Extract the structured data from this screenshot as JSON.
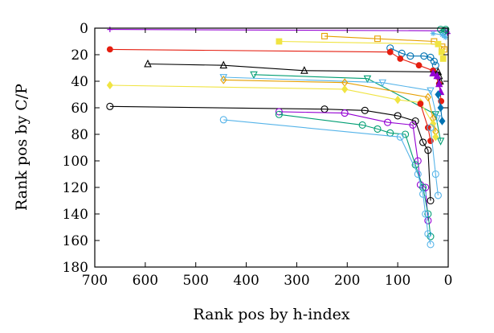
{
  "chart_data": {
    "type": "line",
    "title": "",
    "xlabel": "Rank pos by h-index",
    "ylabel": "Rank pos by C/P",
    "xlim": [
      700,
      0
    ],
    "ylim": [
      180,
      0
    ],
    "x_ticks": [
      700,
      600,
      500,
      400,
      300,
      200,
      100,
      0
    ],
    "y_ticks": [
      0,
      20,
      40,
      60,
      80,
      100,
      120,
      140,
      160,
      180
    ],
    "x_tick_labels": [
      "700",
      "600",
      "500",
      "400",
      "300",
      "200",
      "100",
      "0"
    ],
    "y_tick_labels": [
      "0",
      "20",
      "40",
      "60",
      "80",
      "100",
      "120",
      "140",
      "160",
      "180"
    ],
    "grid": false,
    "legend": "none",
    "series": [
      {
        "color": "#9400d3",
        "marker": "plus",
        "x": [
          670,
          5,
          2,
          1
        ],
        "y": [
          1,
          2,
          3,
          4
        ]
      },
      {
        "color": "#009e73",
        "marker": "circle-open",
        "x": [
          15,
          10,
          7,
          5
        ],
        "y": [
          1,
          3,
          2,
          1
        ]
      },
      {
        "color": "#56b4e9",
        "marker": "star",
        "x": [
          30,
          12,
          8,
          5
        ],
        "y": [
          4,
          5,
          6,
          7
        ]
      },
      {
        "color": "#e69f00",
        "marker": "square-open",
        "x": [
          245,
          140,
          28,
          12,
          8
        ],
        "y": [
          6,
          8,
          10,
          14,
          16
        ]
      },
      {
        "color": "#f0e442",
        "marker": "square",
        "x": [
          335,
          20,
          13,
          10
        ],
        "y": [
          10,
          12,
          18,
          23
        ]
      },
      {
        "color": "#0072b2",
        "marker": "circle-open",
        "x": [
          115,
          92,
          75,
          48,
          35,
          28,
          25
        ],
        "y": [
          15,
          19,
          21,
          21,
          22,
          25,
          28
        ]
      },
      {
        "color": "#e51e10",
        "marker": "circle",
        "x": [
          670,
          115,
          95,
          58,
          30,
          18,
          14
        ],
        "y": [
          16,
          18,
          23,
          28,
          32,
          42,
          55
        ]
      },
      {
        "color": "#000000",
        "marker": "triangle-open",
        "x": [
          595,
          445,
          285,
          20,
          18,
          16
        ],
        "y": [
          27,
          28,
          32,
          33,
          36,
          40
        ]
      },
      {
        "color": "#9400d3",
        "marker": "triangle",
        "x": [
          30,
          22,
          18,
          15
        ],
        "y": [
          34,
          36,
          42,
          48
        ]
      },
      {
        "color": "#009e73",
        "marker": "triangle-down-open",
        "x": [
          385,
          160,
          25,
          15
        ],
        "y": [
          35,
          38,
          65,
          85
        ]
      },
      {
        "color": "#56b4e9",
        "marker": "triangle-down-open",
        "x": [
          445,
          130,
          35,
          22
        ],
        "y": [
          37,
          41,
          47,
          68
        ]
      },
      {
        "color": "#e69f00",
        "marker": "diamond-open",
        "x": [
          445,
          205,
          40,
          30,
          25
        ],
        "y": [
          39,
          41,
          52,
          68,
          78
        ]
      },
      {
        "color": "#f0e442",
        "marker": "diamond",
        "x": [
          670,
          205,
          100,
          55,
          30,
          25
        ],
        "y": [
          43,
          46,
          54,
          56,
          72,
          82
        ]
      },
      {
        "color": "#0072b2",
        "marker": "diamond",
        "x": [
          20,
          15,
          12
        ],
        "y": [
          50,
          60,
          70
        ]
      },
      {
        "color": "#e51e10",
        "marker": "circle",
        "x": [
          55,
          40,
          35
        ],
        "y": [
          57,
          75,
          85
        ]
      },
      {
        "color": "#000000",
        "marker": "circle-open",
        "x": [
          670,
          245,
          165,
          100,
          65,
          50,
          40,
          35
        ],
        "y": [
          59,
          61,
          62,
          66,
          70,
          86,
          92,
          130
        ]
      },
      {
        "color": "#9400d3",
        "marker": "circle-open",
        "x": [
          335,
          205,
          120,
          70,
          60,
          55,
          45,
          40
        ],
        "y": [
          63,
          64,
          71,
          73,
          100,
          118,
          120,
          145
        ]
      },
      {
        "color": "#009e73",
        "marker": "circle-open",
        "x": [
          335,
          170,
          140,
          115,
          85,
          65,
          50,
          40,
          35
        ],
        "y": [
          65,
          73,
          76,
          79,
          80,
          103,
          120,
          140,
          157
        ]
      },
      {
        "color": "#56b4e9",
        "marker": "circle-open",
        "x": [
          445,
          95,
          60,
          50,
          45,
          40,
          35
        ],
        "y": [
          69,
          82,
          110,
          125,
          140,
          155,
          163
        ]
      },
      {
        "color": "#56b4e9",
        "marker": "circle-open",
        "x": [
          35,
          25,
          20
        ],
        "y": [
          75,
          110,
          126
        ]
      }
    ]
  }
}
